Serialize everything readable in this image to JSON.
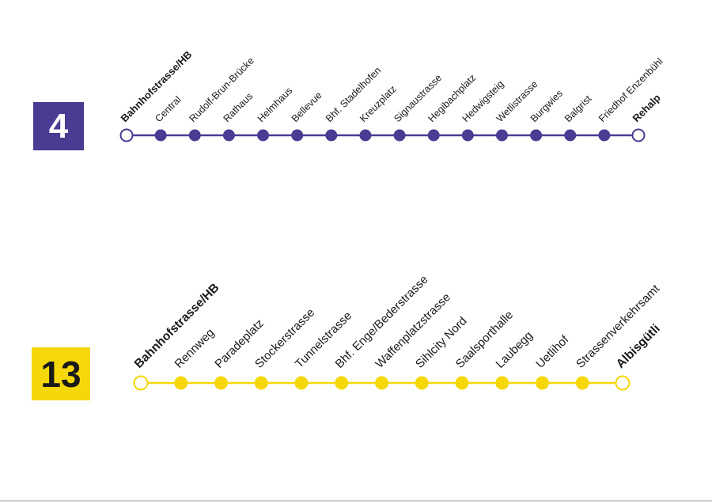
{
  "lines": [
    {
      "number": "4",
      "color": "#4a3b93",
      "text_color": "#ffffff",
      "stops": [
        {
          "name": "Bahnhofstrasse/HB",
          "terminus": true
        },
        {
          "name": "Central",
          "terminus": false
        },
        {
          "name": "Rudolf-Brun-Brücke",
          "terminus": false
        },
        {
          "name": "Rathaus",
          "terminus": false
        },
        {
          "name": "Helmhaus",
          "terminus": false
        },
        {
          "name": "Bellevue",
          "terminus": false
        },
        {
          "name": "Bhf. Stadelhofen",
          "terminus": false
        },
        {
          "name": "Kreuzplatz",
          "terminus": false
        },
        {
          "name": "Signaustrasse",
          "terminus": false
        },
        {
          "name": "Hegibachplatz",
          "terminus": false
        },
        {
          "name": "Hedwigsteig",
          "terminus": false
        },
        {
          "name": "Wetlistrasse",
          "terminus": false
        },
        {
          "name": "Burgwies",
          "terminus": false
        },
        {
          "name": "Balgrist",
          "terminus": false
        },
        {
          "name": "Friedhof Enzenbühl",
          "terminus": false
        },
        {
          "name": "Rehalp",
          "terminus": true
        }
      ]
    },
    {
      "number": "13",
      "color": "#f6d80a",
      "text_color": "#1a1a1a",
      "stops": [
        {
          "name": "Bahnhofstrasse/HB",
          "terminus": true
        },
        {
          "name": "Rennweg",
          "terminus": false
        },
        {
          "name": "Paradeplatz",
          "terminus": false
        },
        {
          "name": "Stockerstrasse",
          "terminus": false
        },
        {
          "name": "Tunnelstrasse",
          "terminus": false
        },
        {
          "name": "Bhf. Enge/Bederstrasse",
          "terminus": false
        },
        {
          "name": "Waffenplatzstrasse",
          "terminus": false
        },
        {
          "name": "Sihlcity Nord",
          "terminus": false
        },
        {
          "name": "Saalsporthalle",
          "terminus": false
        },
        {
          "name": "Laubegg",
          "terminus": false
        },
        {
          "name": "Uetlihof",
          "terminus": false
        },
        {
          "name": "Strassenverkehrsamt",
          "terminus": false
        },
        {
          "name": "Albisgütli",
          "terminus": true
        }
      ]
    }
  ]
}
